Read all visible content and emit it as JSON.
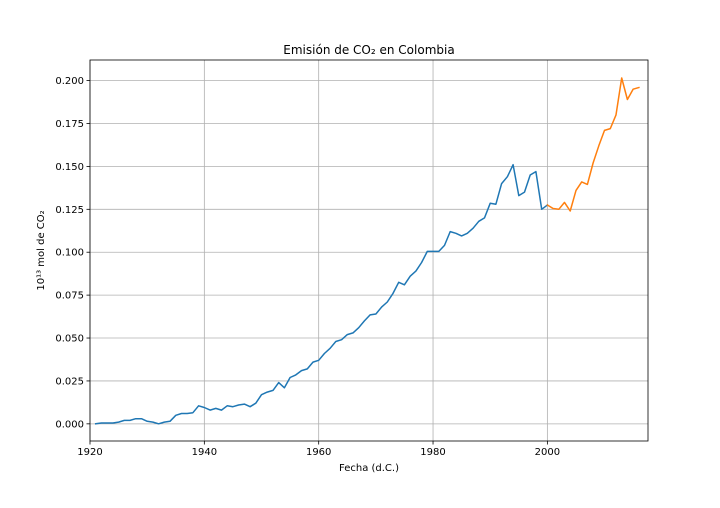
{
  "chart_data": {
    "type": "line",
    "title": "Emisión de CO₂ en Colombia",
    "xlabel": "Fecha (d.C.)",
    "ylabel": "10¹³ mol de CO₂",
    "xlim": [
      1920,
      2017.6
    ],
    "ylim": [
      -0.01,
      0.212
    ],
    "grid": true,
    "x_ticks": [
      1920,
      1940,
      1960,
      1980,
      2000
    ],
    "x_tick_labels": [
      "1920",
      "1940",
      "1960",
      "1980",
      "2000"
    ],
    "y_ticks": [
      0.0,
      0.025,
      0.05,
      0.075,
      0.1,
      0.125,
      0.15,
      0.175,
      0.2
    ],
    "y_tick_labels": [
      "0.000",
      "0.025",
      "0.050",
      "0.075",
      "0.100",
      "0.125",
      "0.150",
      "0.175",
      "0.200"
    ],
    "series": [
      {
        "color": "#1f77b4",
        "x": [
          1921,
          1922,
          1923,
          1924,
          1925,
          1926,
          1927,
          1928,
          1929,
          1930,
          1931,
          1932,
          1933,
          1934,
          1935,
          1936,
          1937,
          1938,
          1939,
          1940,
          1941,
          1942,
          1943,
          1944,
          1945,
          1946,
          1947,
          1948,
          1949,
          1950,
          1951,
          1952,
          1953,
          1954,
          1955,
          1956,
          1957,
          1958,
          1959,
          1960,
          1961,
          1962,
          1963,
          1964,
          1965,
          1966,
          1967,
          1968,
          1969,
          1970,
          1971,
          1972,
          1973,
          1974,
          1975,
          1976,
          1977,
          1978,
          1979,
          1980,
          1981,
          1982,
          1983,
          1984,
          1985,
          1986,
          1987,
          1988,
          1989,
          1990,
          1991,
          1992,
          1993,
          1994,
          1995,
          1996,
          1997,
          1998,
          1999,
          2000
        ],
        "y": [
          0.0,
          0.0005,
          0.0005,
          0.0005,
          0.001,
          0.002,
          0.002,
          0.003,
          0.003,
          0.0015,
          0.001,
          0.0,
          0.001,
          0.0015,
          0.005,
          0.006,
          0.006,
          0.0065,
          0.0105,
          0.0095,
          0.008,
          0.009,
          0.008,
          0.0105,
          0.01,
          0.011,
          0.0115,
          0.01,
          0.012,
          0.017,
          0.0185,
          0.0195,
          0.024,
          0.021,
          0.027,
          0.0285,
          0.031,
          0.032,
          0.036,
          0.037,
          0.041,
          0.044,
          0.048,
          0.049,
          0.052,
          0.053,
          0.056,
          0.06,
          0.0635,
          0.064,
          0.068,
          0.071,
          0.076,
          0.0825,
          0.081,
          0.086,
          0.089,
          0.094,
          0.1005,
          0.1005,
          0.1005,
          0.104,
          0.112,
          0.111,
          0.1095,
          0.111,
          0.114,
          0.118,
          0.12,
          0.1285,
          0.128,
          0.14,
          0.144,
          0.151,
          0.133,
          0.135,
          0.145,
          0.147,
          0.125,
          0.1275
        ]
      },
      {
        "color": "#ff7f0e",
        "x": [
          2000,
          2001,
          2002,
          2003,
          2004,
          2005,
          2006,
          2007,
          2008,
          2009,
          2010,
          2011,
          2012,
          2013,
          2014,
          2015,
          2016
        ],
        "y": [
          0.1275,
          0.1255,
          0.125,
          0.129,
          0.124,
          0.136,
          0.141,
          0.1395,
          0.152,
          0.162,
          0.171,
          0.172,
          0.18,
          0.2015,
          0.189,
          0.195,
          0.196
        ]
      }
    ]
  }
}
